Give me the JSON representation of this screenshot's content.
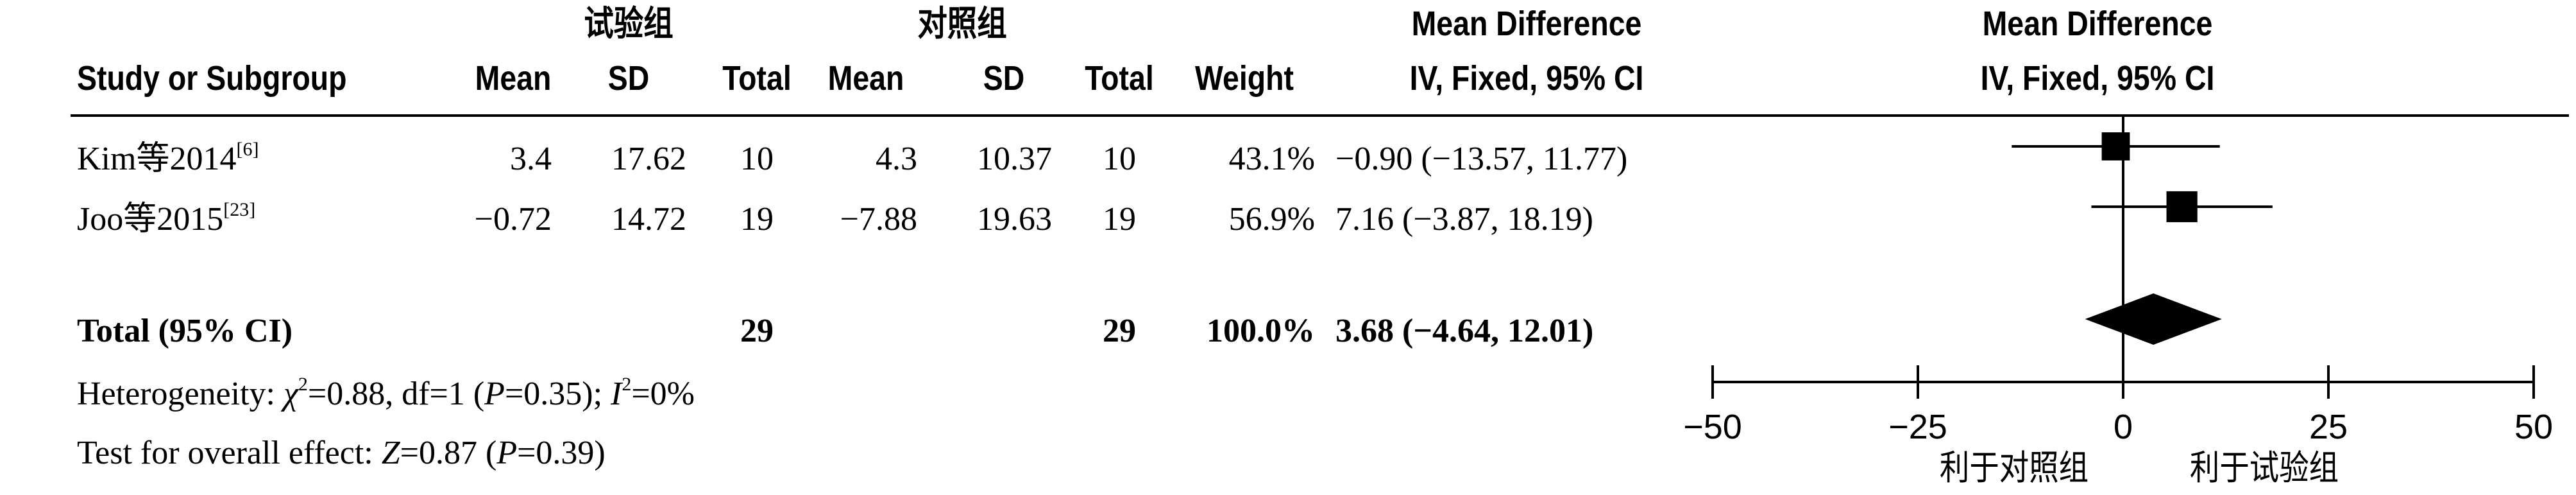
{
  "header": {
    "group1": "试验组",
    "group2": "对照组",
    "md_title": "Mean Difference",
    "md_method": "IV, Fixed, 95% CI",
    "plot_title": "Mean Difference",
    "plot_method": "IV, Fixed, 95% CI",
    "study_col": "Study or Subgroup",
    "mean1": "Mean",
    "sd1": "SD",
    "total1": "Total",
    "mean2": "Mean",
    "sd2": "SD",
    "total2": "Total",
    "weight": "Weight"
  },
  "studies": [
    {
      "name": "Kim等2014",
      "ref": "[6]",
      "mean1": "3.4",
      "sd1": "17.62",
      "total1": "10",
      "mean2": "4.3",
      "sd2": "10.37",
      "total2": "10",
      "weight": "43.1%",
      "ci_text": "−0.90 (−13.57, 11.77)"
    },
    {
      "name": "Joo等2015",
      "ref": "[23]",
      "mean1": "−0.72",
      "sd1": "14.72",
      "total1": "19",
      "mean2": "−7.88",
      "sd2": "19.63",
      "total2": "19",
      "weight": "56.9%",
      "ci_text": "7.16 (−3.87, 18.19)"
    }
  ],
  "total": {
    "label": "Total (95% CI)",
    "total1": "29",
    "total2": "29",
    "weight": "100.0%",
    "ci_text": "3.68 (−4.64, 12.01)"
  },
  "heterogeneity": {
    "prefix": "Heterogeneity: ",
    "chi": "χ",
    "chi_rest": "=0.88, df=1 (",
    "p": "P",
    "p_rest": "=0.35); ",
    "i": "I",
    "i_rest": "=0%"
  },
  "overall": {
    "prefix": "Test for overall effect: ",
    "z": "Z",
    "z_rest": "=0.87 (",
    "p": "P",
    "p_rest": "=0.39)"
  },
  "axis": {
    "favours_left": "利于对照组",
    "favours_right": "利于试验组"
  },
  "chart_data": {
    "type": "forest",
    "xlim": [
      -50,
      50
    ],
    "ticks": [
      -50,
      -25,
      0,
      25,
      50
    ],
    "tick_labels": [
      "−50",
      "−25",
      "0",
      "25",
      "50"
    ],
    "studies": [
      {
        "name": "Kim等2014",
        "md": -0.9,
        "lo": -13.57,
        "hi": 11.77,
        "weight": 43.1
      },
      {
        "name": "Joo等2015",
        "md": 7.16,
        "lo": -3.87,
        "hi": 18.19,
        "weight": 56.9
      }
    ],
    "pooled": {
      "md": 3.68,
      "lo": -4.64,
      "hi": 12.01
    }
  }
}
